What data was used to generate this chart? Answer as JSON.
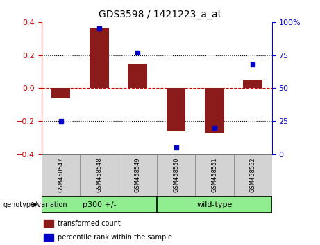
{
  "title": "GDS3598 / 1421223_a_at",
  "samples": [
    "GSM458547",
    "GSM458548",
    "GSM458549",
    "GSM458550",
    "GSM458551",
    "GSM458552"
  ],
  "bar_values": [
    -0.06,
    0.36,
    0.15,
    -0.26,
    -0.27,
    0.05
  ],
  "scatter_values": [
    25,
    95,
    77,
    5,
    20,
    68
  ],
  "bar_color": "#8B1A1A",
  "scatter_color": "#0000CD",
  "ylim_left": [
    -0.4,
    0.4
  ],
  "ylim_right": [
    0,
    100
  ],
  "yticks_left": [
    -0.4,
    -0.2,
    0.0,
    0.2,
    0.4
  ],
  "yticks_right": [
    0,
    25,
    50,
    75,
    100
  ],
  "yticklabels_right": [
    "0",
    "25",
    "50",
    "75",
    "100%"
  ],
  "hline_color": "#CC0000",
  "dotted_levels": [
    -0.2,
    0.2
  ],
  "legend_bar_label": "transformed count",
  "legend_scatter_label": "percentile rank within the sample",
  "genotype_label": "genotype/variation",
  "group1_label": "p300 +/-",
  "group2_label": "wild-type",
  "group_color": "#90EE90",
  "sample_box_color": "#d3d3d3",
  "bar_width": 0.5
}
